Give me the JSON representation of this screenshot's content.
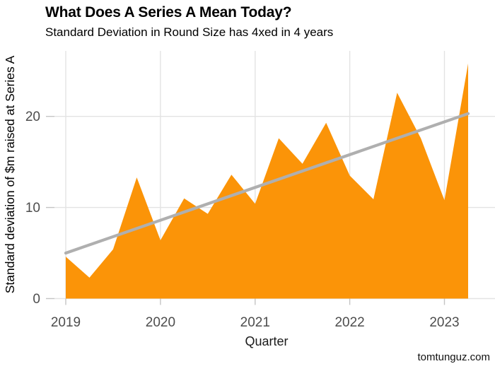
{
  "header": {
    "title": "What Does A Series A Mean Today?",
    "subtitle": "Standard Deviation in Round Size has 4xed in 4 years"
  },
  "caption": "tomtunguz.com",
  "colors": {
    "area": "#FB9408",
    "trend": "#AFAFAF",
    "grid": "#E3E3E3",
    "tick": "#C4C4C4",
    "axis_text": "#4D4D4D",
    "axis_title_text": "#1A1A1A",
    "title_text": "#000000"
  },
  "chart_data": {
    "type": "area",
    "title": "What Does A Series A Mean Today?",
    "subtitle": "Standard Deviation in Round Size has 4xed in 4 years",
    "xlabel": "Quarter",
    "ylabel": "Standard deviation of $m raised at Series A",
    "grid": true,
    "legend": "none",
    "ylim": [
      0,
      27
    ],
    "x": [
      "2019 Q1",
      "2019 Q2",
      "2019 Q3",
      "2019 Q4",
      "2020 Q1",
      "2020 Q2",
      "2020 Q3",
      "2020 Q4",
      "2021 Q1",
      "2021 Q2",
      "2021 Q3",
      "2021 Q4",
      "2022 Q1",
      "2022 Q2",
      "2022 Q3",
      "2022 Q4",
      "2023 Q1",
      "2023 Q2"
    ],
    "values": [
      4.6,
      2.3,
      5.4,
      13.3,
      6.4,
      11.0,
      9.3,
      13.6,
      10.4,
      17.6,
      14.8,
      19.3,
      13.5,
      10.9,
      22.6,
      17.6,
      10.8,
      25.8
    ],
    "x_ticks": [
      {
        "label": "2019",
        "index": 0
      },
      {
        "label": "2020",
        "index": 4
      },
      {
        "label": "2021",
        "index": 8
      },
      {
        "label": "2022",
        "index": 12
      },
      {
        "label": "2023",
        "index": 16
      }
    ],
    "y_ticks": [
      {
        "label": "0",
        "value": 0
      },
      {
        "label": "10",
        "value": 10
      },
      {
        "label": "20",
        "value": 20
      }
    ],
    "trendline": {
      "type": "linear",
      "start_x": "2019 Q1",
      "end_x": "2023 Q2",
      "start_value": 5.0,
      "end_value": 20.3
    }
  }
}
